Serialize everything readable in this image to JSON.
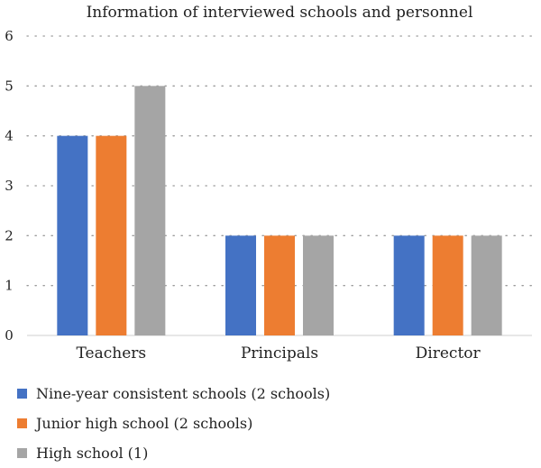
{
  "chart_data": {
    "type": "bar",
    "title": "Information of interviewed schools and personnel",
    "xlabel": "",
    "ylabel": "",
    "categories": [
      "Teachers",
      "Principals",
      "Director"
    ],
    "ylim": [
      0,
      6
    ],
    "yticks": [
      0,
      1,
      2,
      3,
      4,
      5,
      6
    ],
    "grid": true,
    "legend_position": "bottom",
    "series": [
      {
        "name": "Nine-year consistent schools (2 schools)",
        "values": [
          4,
          2,
          2
        ],
        "color": "#4472C4"
      },
      {
        "name": "Junior high school (2 schools)",
        "values": [
          4,
          2,
          2
        ],
        "color": "#ED7D31"
      },
      {
        "name": "High school (1)",
        "values": [
          5,
          2,
          2
        ],
        "color": "#A5A5A5"
      }
    ]
  }
}
